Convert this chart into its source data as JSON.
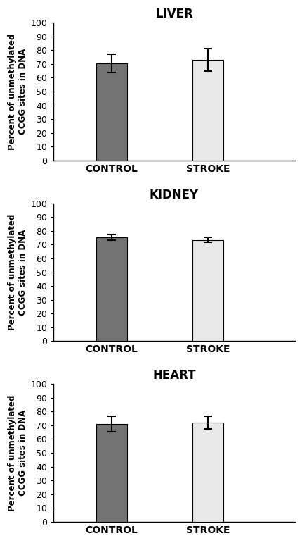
{
  "panels": [
    {
      "title": "LIVER",
      "control_value": 70.5,
      "stroke_value": 73.0,
      "control_err": 6.5,
      "stroke_err": 8.0
    },
    {
      "title": "KIDNEY",
      "control_value": 75.5,
      "stroke_value": 73.5,
      "control_err": 2.0,
      "stroke_err": 2.0
    },
    {
      "title": "HEART",
      "control_value": 71.0,
      "stroke_value": 72.0,
      "control_err": 5.5,
      "stroke_err": 4.5
    }
  ],
  "bar_colors": [
    "#737373",
    "#e8e8e8"
  ],
  "bar_edgecolor": "#000000",
  "xlabel_labels": [
    "CONTROL",
    "STROKE"
  ],
  "ylabel": "Percent of unmethylated\nCCGG sites in DNA",
  "ylim": [
    0,
    100
  ],
  "yticks": [
    0,
    10,
    20,
    30,
    40,
    50,
    60,
    70,
    80,
    90,
    100
  ],
  "bar_width": 0.32,
  "bar_positions": [
    1,
    2
  ],
  "xlim": [
    0.4,
    2.9
  ],
  "title_fontsize": 12,
  "label_fontsize": 10,
  "tick_fontsize": 9,
  "ylabel_fontsize": 8.5,
  "background_color": "#ffffff",
  "capsize": 4,
  "elinewidth": 1.5,
  "ecapthick": 1.5
}
